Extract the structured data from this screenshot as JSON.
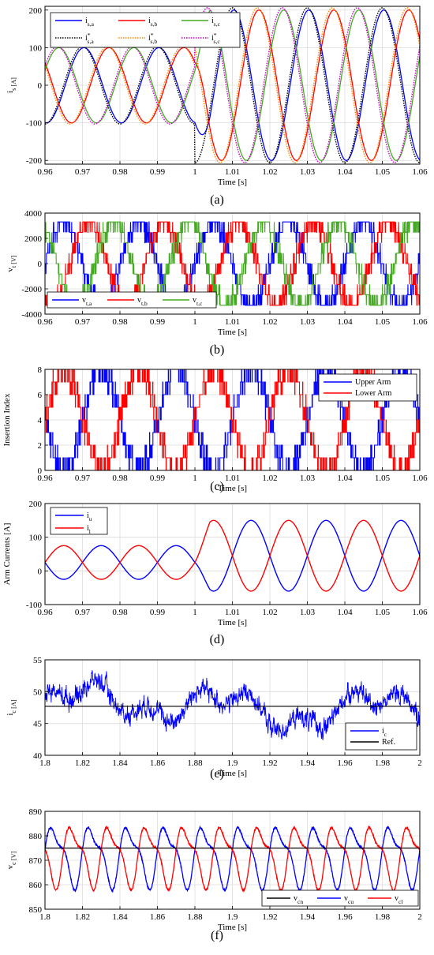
{
  "figure": {
    "panel_labels": [
      "(a)",
      "(b)",
      "(c)",
      "(d)",
      "(e)",
      "(f)"
    ]
  },
  "chart_data": [
    {
      "id": "a",
      "type": "line",
      "label": "(a)",
      "xlabel": "Time [s]",
      "ylabel": "i_s [A]",
      "xlim": [
        0.96,
        1.06
      ],
      "ylim": [
        -210,
        210
      ],
      "xticks": [
        0.96,
        0.97,
        0.98,
        0.99,
        1,
        1.01,
        1.02,
        1.03,
        1.04,
        1.05,
        1.06
      ],
      "xtick_labels": [
        "0.96",
        "0.97",
        "0.98",
        "0.99",
        "1",
        "1.01",
        "1.02",
        "1.03",
        "1.04",
        "1.05",
        "1.06"
      ],
      "yticks": [
        -200,
        -100,
        0,
        100,
        200
      ],
      "ytick_labels": [
        "-200",
        "-100",
        "0",
        "100",
        "200"
      ],
      "grid": true,
      "legend_position": "top-left",
      "frequency_hz": 50,
      "step_time_s": 1.0,
      "amplitude_before_A": 100,
      "amplitude_after_A": 200,
      "series": [
        {
          "name": "i_s,a",
          "color": "#0000ff",
          "style": "solid",
          "phase_deg": 180
        },
        {
          "name": "i_s,b",
          "color": "#ff0000",
          "style": "solid",
          "phase_deg": 60
        },
        {
          "name": "i_s,c",
          "color": "#44aa22",
          "style": "solid",
          "phase_deg": -60
        },
        {
          "name": "i*_s,a",
          "color": "#000000",
          "style": "dotted",
          "phase_deg": 180
        },
        {
          "name": "i*_s,b",
          "color": "#ff8800",
          "style": "dotted",
          "phase_deg": 60
        },
        {
          "name": "i*_s,c",
          "color": "#cc00cc",
          "style": "dotted",
          "phase_deg": -60
        }
      ]
    },
    {
      "id": "b",
      "type": "line",
      "label": "(b)",
      "xlabel": "Time [s]",
      "ylabel": "v_t [V]",
      "xlim": [
        0.96,
        1.06
      ],
      "ylim": [
        -4000,
        4000
      ],
      "xticks": [
        0.96,
        0.97,
        0.98,
        0.99,
        1,
        1.01,
        1.02,
        1.03,
        1.04,
        1.05,
        1.06
      ],
      "xtick_labels": [
        "0.96",
        "0.97",
        "0.98",
        "0.99",
        "1",
        "1.01",
        "1.02",
        "1.03",
        "1.04",
        "1.05",
        "1.06"
      ],
      "yticks": [
        -4000,
        -2000,
        0,
        2000,
        4000
      ],
      "ytick_labels": [
        "-4000",
        "-2000",
        "0",
        "2000",
        "4000"
      ],
      "grid": true,
      "legend_position": "bottom-left",
      "frequency_hz": 50,
      "amplitude_V": 3300,
      "series": [
        {
          "name": "v_t,a",
          "color": "#0000ff",
          "phase_deg": 0
        },
        {
          "name": "v_t,b",
          "color": "#ff0000",
          "phase_deg": -120
        },
        {
          "name": "v_t,c",
          "color": "#44aa22",
          "phase_deg": 120
        }
      ]
    },
    {
      "id": "c",
      "type": "line",
      "label": "(c)",
      "xlabel": "Time [s]",
      "ylabel": "Insertion Index",
      "xlim": [
        0.96,
        1.06
      ],
      "ylim": [
        0,
        8
      ],
      "xticks": [
        0.96,
        0.97,
        0.98,
        0.99,
        1,
        1.01,
        1.02,
        1.03,
        1.04,
        1.05,
        1.06
      ],
      "xtick_labels": [
        "0.96",
        "0.97",
        "0.98",
        "0.99",
        "1",
        "1.01",
        "1.02",
        "1.03",
        "1.04",
        "1.05",
        "1.06"
      ],
      "yticks": [
        0,
        2,
        4,
        6,
        8
      ],
      "ytick_labels": [
        "0",
        "2",
        "4",
        "6",
        "8"
      ],
      "grid": true,
      "legend_position": "top-right",
      "frequency_hz": 50,
      "series": [
        {
          "name": "Upper Arm",
          "color": "#0000ff",
          "phase_deg": 180
        },
        {
          "name": "Lower Arm",
          "color": "#ff0000",
          "phase_deg": 0
        }
      ]
    },
    {
      "id": "d",
      "type": "line",
      "label": "(d)",
      "xlabel": "Time [s]",
      "ylabel": "Arm Currents [A]",
      "xlim": [
        0.96,
        1.06
      ],
      "ylim": [
        -100,
        200
      ],
      "xticks": [
        0.96,
        0.97,
        0.98,
        0.99,
        1,
        1.01,
        1.02,
        1.03,
        1.04,
        1.05,
        1.06
      ],
      "xtick_labels": [
        "0.96",
        "0.97",
        "0.98",
        "0.99",
        "1",
        "1.01",
        "1.02",
        "1.03",
        "1.04",
        "1.05",
        "1.06"
      ],
      "yticks": [
        -100,
        0,
        100,
        200
      ],
      "ytick_labels": [
        "-100",
        "0",
        "100",
        "200"
      ],
      "grid": true,
      "legend_position": "top-left",
      "frequency_hz": 50,
      "step_time_s": 1.0,
      "dc_before_A": 25,
      "ac_before_A": 50,
      "dc_after_A": 45,
      "ac_after_A": 105,
      "series": [
        {
          "name": "i_u",
          "color": "#0000ff",
          "sign": 1
        },
        {
          "name": "i_l",
          "color": "#ff0000",
          "sign": -1
        }
      ]
    },
    {
      "id": "e",
      "type": "line",
      "label": "(e)",
      "xlabel": "Time [s]",
      "ylabel": "i_c [A]",
      "xlim": [
        1.8,
        2
      ],
      "ylim": [
        40,
        55
      ],
      "xticks": [
        1.8,
        1.82,
        1.84,
        1.86,
        1.88,
        1.9,
        1.92,
        1.94,
        1.96,
        1.98,
        2
      ],
      "xtick_labels": [
        "1.8",
        "1.82",
        "1.84",
        "1.86",
        "1.88",
        "1.9",
        "1.92",
        "1.94",
        "1.96",
        "1.98",
        "2"
      ],
      "yticks": [
        40,
        45,
        50,
        55
      ],
      "ytick_labels": [
        "40",
        "45",
        "50",
        "55"
      ],
      "grid": true,
      "legend_position": "bottom-right",
      "reference_A": 47.7,
      "series": [
        {
          "name": "i_c",
          "color": "#0000ff"
        },
        {
          "name": "Ref.",
          "color": "#000000"
        }
      ]
    },
    {
      "id": "f",
      "type": "line",
      "label": "(f)",
      "xlabel": "Time [s]",
      "ylabel": "v_c [V]",
      "xlim": [
        1.8,
        2
      ],
      "ylim": [
        850,
        890
      ],
      "xticks": [
        1.8,
        1.82,
        1.84,
        1.86,
        1.88,
        1.9,
        1.92,
        1.94,
        1.96,
        1.98,
        2
      ],
      "xtick_labels": [
        "1.8",
        "1.82",
        "1.84",
        "1.86",
        "1.88",
        "1.9",
        "1.92",
        "1.94",
        "1.96",
        "1.98",
        "2"
      ],
      "yticks": [
        850,
        860,
        870,
        880,
        890
      ],
      "ytick_labels": [
        "850",
        "860",
        "870",
        "880",
        "890"
      ],
      "grid": true,
      "legend_position": "bottom-right",
      "frequency_hz": 50,
      "mean_V": 872,
      "ripple_V": 12,
      "series": [
        {
          "name": "v_cn",
          "color": "#000000",
          "value_V": 875
        },
        {
          "name": "v_cu",
          "color": "#0000ff",
          "phase_deg": 0
        },
        {
          "name": "v_cl",
          "color": "#ff0000",
          "phase_deg": 180
        }
      ]
    }
  ]
}
